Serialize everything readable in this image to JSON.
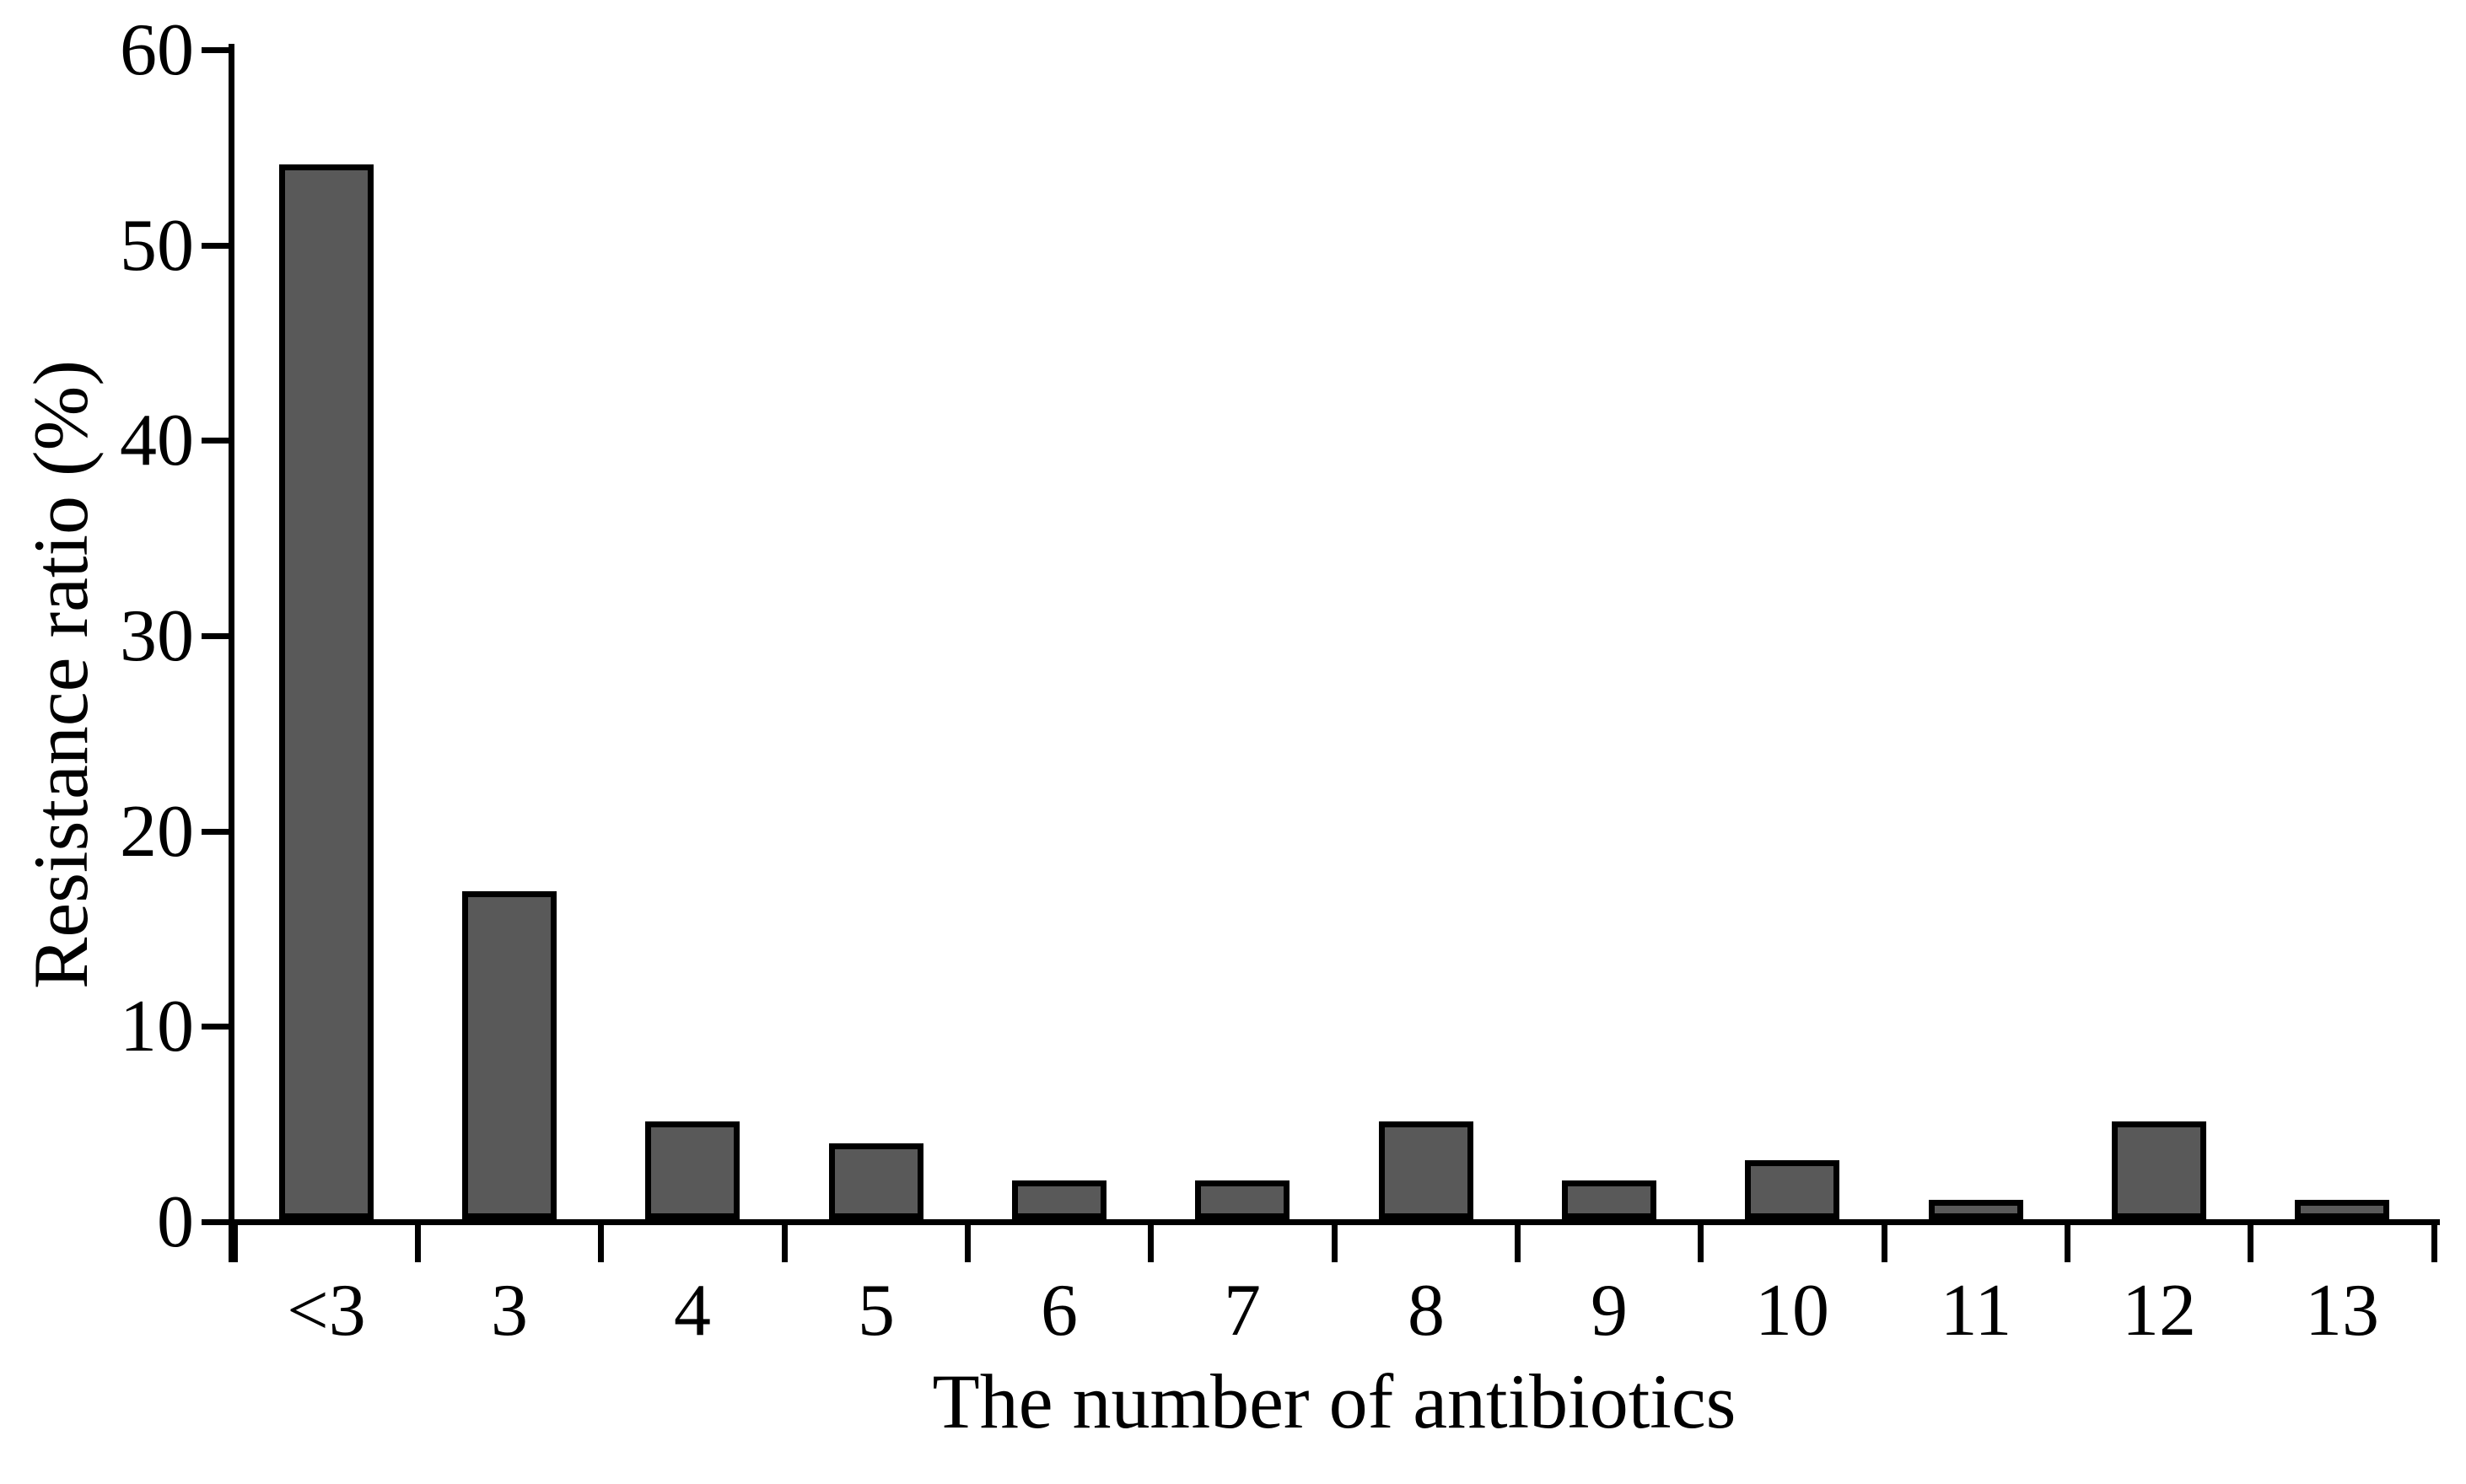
{
  "chart_data": {
    "type": "bar",
    "title": "",
    "xlabel": "The number of antibiotics",
    "ylabel": "Resistance ratio (%)",
    "categories": [
      "<3",
      "3",
      "4",
      "5",
      "6",
      "7",
      "8",
      "9",
      "10",
      "11",
      "12",
      "13"
    ],
    "values": [
      54,
      16.8,
      5,
      3.9,
      2,
      2,
      5,
      2,
      3,
      1,
      5,
      1
    ],
    "ylim": [
      0,
      60
    ],
    "yticks": [
      0,
      10,
      20,
      30,
      40,
      50,
      60
    ],
    "grid": false,
    "legend_position": "none",
    "bar_color": "#595959",
    "bar_border_color": "#000000",
    "axis_color": "#000000",
    "text_color": "#000000",
    "background_color": "#ffffff"
  }
}
